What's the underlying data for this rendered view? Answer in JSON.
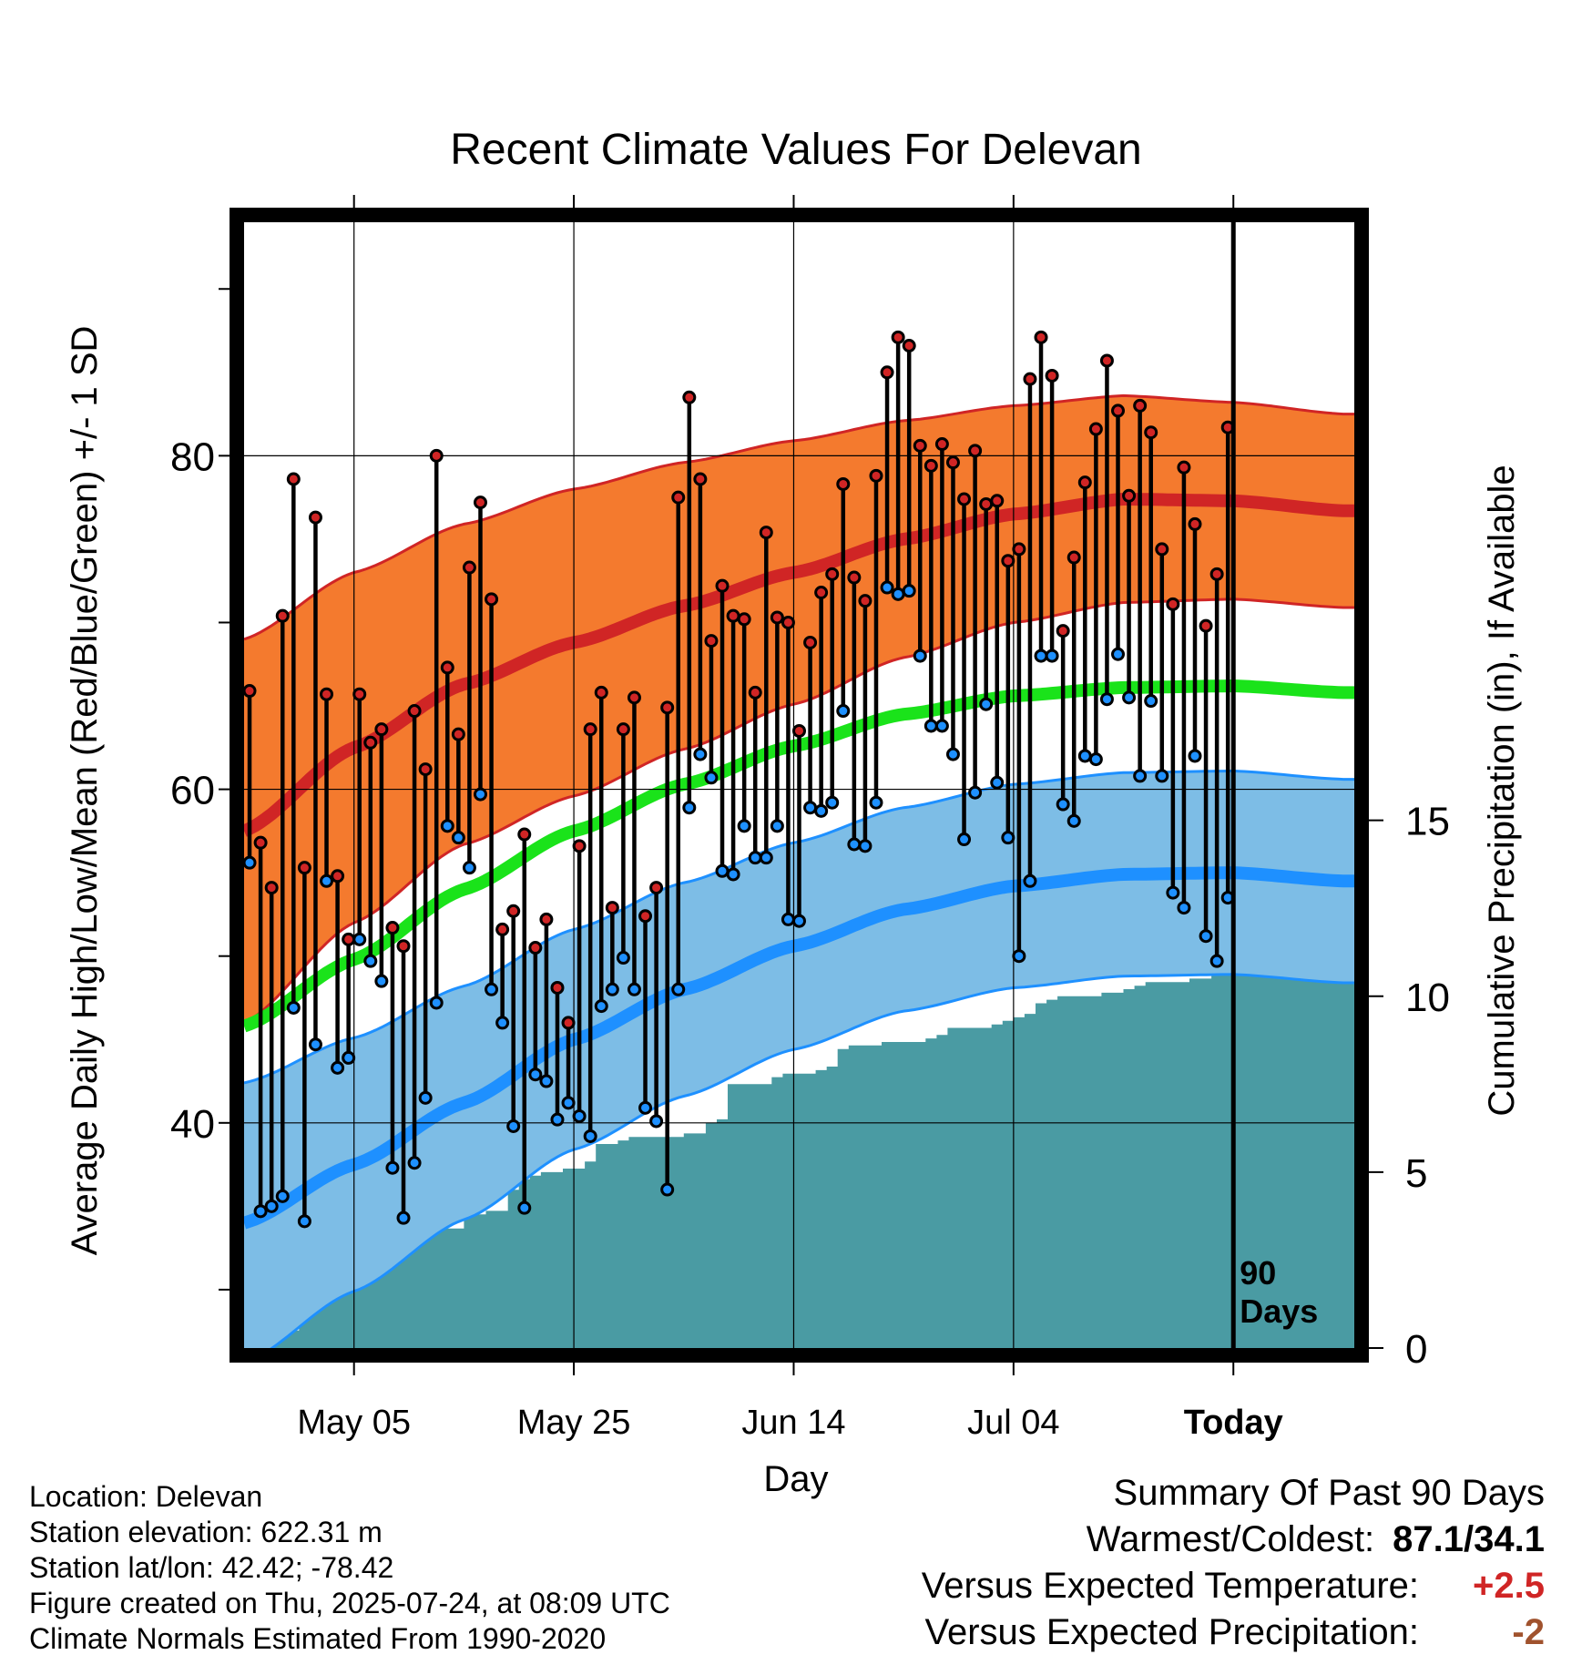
{
  "chart_data": {
    "type": "line",
    "title": "Recent Climate Values For Delevan",
    "xlabel": "Day",
    "ylabel": "Average Daily High/Low/Mean (Red/Blue/Green) +/- 1 SD",
    "y2label": "Cumulative Precipitation (in), If Available",
    "ylim": [
      26.5,
      94
    ],
    "y_ticks": [
      40,
      60,
      80
    ],
    "y2lim": [
      0,
      32
    ],
    "y2_ticks": [
      0,
      5,
      10,
      15
    ],
    "x_start": "2025-04-25",
    "xlim_days": [
      0,
      101
    ],
    "x_ticks": [
      {
        "day": 10,
        "label": "May 05"
      },
      {
        "day": 30,
        "label": "May 25"
      },
      {
        "day": 50,
        "label": "Jun 14"
      },
      {
        "day": 70,
        "label": "Jul 04"
      },
      {
        "day": 90,
        "label": "Today"
      }
    ],
    "today_marker": {
      "day": 90,
      "label_line1": "90",
      "label_line2": "Days"
    },
    "grid": true,
    "normals": {
      "days": [
        0,
        10,
        20,
        30,
        40,
        50,
        60,
        70,
        80,
        90,
        100
      ],
      "high_mean": [
        57.5,
        62.5,
        66.3,
        68.8,
        71.0,
        73.0,
        75.0,
        76.5,
        77.4,
        77.3,
        76.7
      ],
      "high_sd": [
        11.5,
        10.5,
        9.6,
        9.2,
        8.6,
        7.9,
        7.1,
        6.5,
        6.2,
        5.9,
        5.8
      ],
      "mean": [
        45.8,
        49.8,
        54.0,
        57.5,
        60.3,
        62.6,
        64.5,
        65.6,
        66.1,
        66.2,
        65.8
      ],
      "low_mean": [
        34.0,
        37.5,
        41.2,
        45.0,
        48.0,
        50.6,
        52.8,
        54.2,
        54.9,
        55.0,
        54.5
      ],
      "low_sd": [
        8.4,
        7.6,
        7.0,
        6.6,
        6.4,
        6.2,
        6.1,
        6.1,
        6.1,
        6.1,
        6.1
      ]
    },
    "daily_highs": [
      65.9,
      56.8,
      54.1,
      70.4,
      78.6,
      55.3,
      76.3,
      65.7,
      54.8,
      51.0,
      65.7,
      62.8,
      63.6,
      51.7,
      50.6,
      64.7,
      61.2,
      80.0,
      67.3,
      63.3,
      73.3,
      77.2,
      71.4,
      51.6,
      52.7,
      57.3,
      50.5,
      52.2,
      48.1,
      46.0,
      56.6,
      63.6,
      65.8,
      52.9,
      63.6,
      65.5,
      52.4,
      54.1,
      64.9,
      77.5,
      83.5,
      78.6,
      68.9,
      72.2,
      70.4,
      70.2,
      65.8,
      75.4,
      70.3,
      70.0,
      63.5,
      68.8,
      71.8,
      72.9,
      78.3,
      72.7,
      71.3,
      78.8,
      85.0,
      87.1,
      86.6,
      80.6,
      79.4,
      80.7,
      79.6,
      77.4,
      80.3,
      77.1,
      77.3,
      73.7,
      74.4,
      84.6,
      87.1,
      84.8,
      69.5,
      73.9,
      78.4,
      81.6,
      85.7,
      82.7,
      77.6,
      83.0,
      81.4,
      74.4,
      71.1,
      79.3,
      75.9,
      69.8,
      72.9,
      81.7
    ],
    "daily_lows": [
      55.6,
      34.7,
      35.0,
      35.6,
      46.9,
      34.1,
      44.7,
      54.5,
      43.3,
      43.9,
      51.0,
      49.7,
      48.5,
      37.3,
      34.3,
      37.6,
      41.5,
      47.2,
      57.8,
      57.1,
      55.3,
      59.7,
      48.0,
      46.0,
      39.8,
      34.9,
      42.9,
      42.5,
      40.2,
      41.2,
      40.4,
      39.2,
      47.0,
      48.0,
      49.9,
      48.0,
      40.9,
      40.1,
      36.0,
      48.0,
      58.9,
      62.1,
      60.7,
      55.1,
      54.9,
      57.8,
      55.9,
      55.9,
      57.8,
      52.2,
      52.1,
      58.9,
      58.7,
      59.2,
      64.7,
      56.7,
      56.6,
      59.2,
      72.1,
      71.7,
      71.9,
      68.0,
      63.8,
      63.8,
      62.1,
      57.0,
      59.8,
      65.1,
      60.4,
      57.1,
      50.0,
      54.5,
      68.0,
      68.0,
      59.1,
      58.1,
      62.0,
      61.8,
      65.4,
      68.1,
      65.5,
      60.8,
      65.3,
      60.8,
      53.8,
      52.9,
      62.0,
      51.2,
      49.7,
      53.5
    ],
    "precip_cumulative": {
      "days": [
        0,
        2,
        3,
        4,
        5,
        6,
        7,
        8,
        9,
        10,
        11,
        12,
        13,
        14,
        18,
        20,
        22,
        24,
        25,
        26,
        27,
        29,
        31,
        32,
        34,
        35,
        40,
        42,
        43,
        44,
        46,
        48,
        49,
        52,
        53,
        54,
        55,
        58,
        62,
        63,
        64,
        66,
        68,
        69,
        70,
        71,
        72,
        73,
        74,
        78,
        80,
        81,
        82,
        84,
        86,
        88,
        101
      ],
      "values": [
        0.0,
        0.1,
        0.3,
        0.5,
        0.8,
        1.4,
        1.6,
        2.2,
        2.4,
        2.8,
        3.0,
        3.3,
        3.3,
        3.3,
        3.4,
        3.8,
        3.9,
        4.5,
        4.8,
        4.9,
        5.0,
        5.1,
        5.3,
        5.8,
        5.9,
        6.0,
        6.1,
        6.4,
        6.5,
        7.5,
        7.5,
        7.7,
        7.8,
        7.9,
        8.0,
        8.5,
        8.6,
        8.7,
        8.8,
        8.9,
        9.1,
        9.1,
        9.2,
        9.3,
        9.4,
        9.5,
        9.8,
        9.9,
        10.0,
        10.1,
        10.2,
        10.3,
        10.4,
        10.4,
        10.5,
        10.6,
        10.6
      ]
    },
    "colors": {
      "high_band": "#F47A2E",
      "high_line": "#D02525",
      "mean_line": "#1AE31A",
      "low_band": "#7DBDE6",
      "low_line": "#1E90FF",
      "low_band_edge": "#1E90FF",
      "precip": "#4A9BA3",
      "high_marker": "#D02525",
      "low_marker": "#1E90FF"
    }
  },
  "info": {
    "location": "Location: Delevan",
    "elevation": "Station elevation: 622.31 m",
    "latlon": "Station lat/lon: 42.42; -78.42",
    "created": "Figure created on Thu, 2025-07-24, at 08:09 UTC",
    "normals_period": "Climate Normals Estimated From 1990-2020"
  },
  "summary": {
    "heading": "Summary Of Past 90 Days",
    "warmest_label": "Warmest/Coldest:",
    "warmest_value": "87.1/34.1",
    "temp_label": "Versus Expected Temperature:",
    "temp_value": "+2.5",
    "temp_color": "#D02525",
    "precip_label": "Versus Expected Precipitation:",
    "precip_value": "-2",
    "precip_color": "#A0522D"
  }
}
